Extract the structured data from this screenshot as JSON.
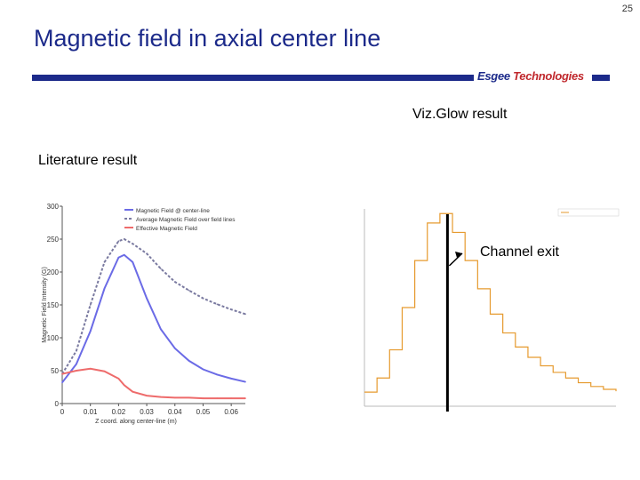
{
  "page_number": "25",
  "title": "Magnetic field in axial center line",
  "brand": {
    "part1": "Esgee",
    "part2": "Technologies"
  },
  "labels": {
    "vizglow": "Viz.Glow result",
    "literature": "Literature  result",
    "channel_exit": "Channel exit"
  },
  "colors": {
    "title_blue": "#1c2a8a",
    "series_blue": "#6b6be6",
    "series_gray": "#7a7aa0",
    "series_red": "#ee6b6b",
    "sim_orange": "#e69a2e"
  },
  "chart_data": [
    {
      "type": "line",
      "xlabel": "Z coord. along center-line (m)",
      "ylabel": "Magnetic Field Intensity (G)",
      "xlim": [
        0,
        0.065
      ],
      "ylim": [
        0,
        300
      ],
      "xticks": [
        "0",
        "0.01",
        "0.02",
        "0.03",
        "0.04",
        "0.05",
        "0.06"
      ],
      "yticks": [
        "0",
        "50",
        "100",
        "150",
        "200",
        "250",
        "300"
      ],
      "legend_position": "top-right",
      "x": [
        0,
        0.005,
        0.01,
        0.015,
        0.02,
        0.022,
        0.025,
        0.03,
        0.035,
        0.04,
        0.045,
        0.05,
        0.055,
        0.06,
        0.065
      ],
      "series": [
        {
          "name": "Magnetic Field @ center-line",
          "color": "#6b6be6",
          "values": [
            32,
            60,
            110,
            175,
            222,
            226,
            215,
            160,
            113,
            84,
            65,
            52,
            44,
            38,
            33
          ]
        },
        {
          "name": "Average Magnetic Field over field lines",
          "color": "#7a7aa0",
          "values": [
            45,
            80,
            150,
            215,
            247,
            250,
            243,
            228,
            205,
            185,
            172,
            160,
            151,
            143,
            136
          ]
        },
        {
          "name": "Effective Magnetic Field",
          "color": "#ee6b6b",
          "values": [
            45,
            50,
            53,
            49,
            38,
            28,
            18,
            12,
            10,
            9,
            9,
            8,
            8,
            8,
            8
          ]
        }
      ]
    },
    {
      "type": "line",
      "step": true,
      "xlim": [
        0,
        0.1
      ],
      "ylim": [
        0,
        0.021
      ],
      "legend_position": "top-right",
      "x": [
        0,
        0.005,
        0.01,
        0.015,
        0.02,
        0.025,
        0.03,
        0.035,
        0.04,
        0.045,
        0.05,
        0.055,
        0.06,
        0.065,
        0.07,
        0.075,
        0.08,
        0.085,
        0.09,
        0.095,
        0.1
      ],
      "series": [
        {
          "color": "#e69a2e",
          "values": [
            0.0015,
            0.003,
            0.006,
            0.0105,
            0.0155,
            0.0195,
            0.0205,
            0.0185,
            0.0155,
            0.0125,
            0.0098,
            0.0078,
            0.0063,
            0.0052,
            0.0043,
            0.0036,
            0.003,
            0.0025,
            0.0021,
            0.0018,
            0.0016
          ]
        }
      ]
    }
  ]
}
